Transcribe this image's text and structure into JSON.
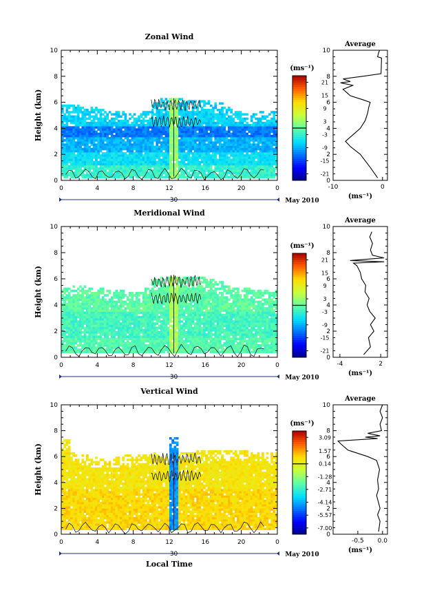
{
  "chart_data": [
    {
      "type": "heatmap",
      "title": "Zonal Wind",
      "ylabel": "Height (km)",
      "xlim": [
        0,
        24
      ],
      "ylim": [
        0,
        10
      ],
      "x_ticks": [
        "0",
        "4",
        "8",
        "12",
        "16",
        "20",
        "0"
      ],
      "y_ticks": [
        "0",
        "2",
        "4",
        "6",
        "8",
        "10"
      ],
      "date_ticks": [
        "30"
      ],
      "date_label": "May 2010",
      "unit_label": "(ms⁻¹)",
      "colorbar_ticks": [
        "21",
        "15",
        "9",
        "3",
        "-3",
        "-9",
        "-15",
        "-21"
      ],
      "colorbar_range": [
        -24,
        24
      ],
      "colorbar_zero_line": 0,
      "field": {
        "base_height_km": 0.2,
        "top_height_km": [
          5.8,
          5.8,
          5.6,
          5.6,
          5.5,
          5.4,
          5.3,
          5.2,
          5.2,
          5.4,
          6.0,
          6.3,
          6.4,
          6.3,
          6.2,
          6.2,
          6.1,
          6.0,
          5.6,
          5.3,
          5.2,
          5.2,
          5.3,
          5.4,
          5.3
        ],
        "bands": [
          {
            "from_km": 0.2,
            "to_km": 1.2,
            "value": -3
          },
          {
            "from_km": 1.2,
            "to_km": 2.2,
            "value": -6
          },
          {
            "from_km": 2.2,
            "to_km": 3.3,
            "value": -9
          },
          {
            "from_km": 3.3,
            "to_km": 4.2,
            "value": -12
          },
          {
            "from_km": 4.2,
            "to_km": 6.4,
            "value": -7
          }
        ],
        "column": {
          "x": 12.5,
          "width": 0.5,
          "value": 3
        }
      },
      "profile": {
        "title": "Average",
        "xlabel": "(ms⁻¹)",
        "xlim": [
          -10,
          1
        ],
        "x_ticks": [
          "-10",
          "0"
        ],
        "y_ticks": [
          "0",
          "2",
          "4",
          "6",
          "8",
          "10"
        ],
        "points": [
          [
            -1.0,
            0.2
          ],
          [
            -2.5,
            1.0
          ],
          [
            -4.5,
            2.0
          ],
          [
            -6.5,
            2.6
          ],
          [
            -7.5,
            3.0
          ],
          [
            -6.0,
            3.5
          ],
          [
            -4.5,
            4.0
          ],
          [
            -3.5,
            4.6
          ],
          [
            -3.0,
            5.2
          ],
          [
            -2.8,
            5.6
          ],
          [
            -2.5,
            6.0
          ],
          [
            -4.0,
            6.2
          ],
          [
            -6.5,
            6.5
          ],
          [
            -8.0,
            7.0
          ],
          [
            -6.0,
            7.3
          ],
          [
            -8.5,
            7.5
          ],
          [
            -6.5,
            7.6
          ],
          [
            -8.0,
            7.8
          ],
          [
            -4.0,
            8.0
          ],
          [
            -0.3,
            8.2
          ],
          [
            -0.2,
            9.4
          ],
          [
            -1.0,
            9.5
          ],
          [
            -0.8,
            9.8
          ],
          [
            -0.6,
            10.0
          ]
        ]
      }
    },
    {
      "type": "heatmap",
      "title": "Meridional Wind",
      "ylabel": "Height (km)",
      "xlim": [
        0,
        24
      ],
      "ylim": [
        0,
        10
      ],
      "x_ticks": [
        "0",
        "4",
        "8",
        "12",
        "16",
        "20",
        "0"
      ],
      "y_ticks": [
        "0",
        "2",
        "4",
        "6",
        "8",
        "10"
      ],
      "date_ticks": [
        "30"
      ],
      "date_label": "May 2010",
      "unit_label": "(ms⁻¹)",
      "colorbar_ticks": [
        "21",
        "15",
        "9",
        "3",
        "-3",
        "-9",
        "-15",
        "-21"
      ],
      "colorbar_range": [
        -24,
        24
      ],
      "colorbar_zero_line": 0,
      "field": {
        "base_height_km": 0.3,
        "top_height_km": [
          5.4,
          5.5,
          5.5,
          5.4,
          5.3,
          5.2,
          5.1,
          5.0,
          5.0,
          5.4,
          6.0,
          6.2,
          6.3,
          6.2,
          6.2,
          6.1,
          6.0,
          5.8,
          5.5,
          5.4,
          5.3,
          5.2,
          5.2,
          5.2,
          5.2
        ],
        "bands": [
          {
            "from_km": 0.3,
            "to_km": 1.5,
            "value": -1
          },
          {
            "from_km": 1.5,
            "to_km": 3.5,
            "value": -2
          },
          {
            "from_km": 3.5,
            "to_km": 6.3,
            "value": -0.5
          }
        ],
        "column": {
          "x": 12.5,
          "width": 0.5,
          "value": 4
        }
      },
      "profile": {
        "title": "Average",
        "xlabel": "(ms⁻¹)",
        "xlim": [
          -5,
          3
        ],
        "x_ticks": [
          "-4",
          "2"
        ],
        "y_ticks": [
          "0",
          "2",
          "4",
          "6",
          "8",
          "10"
        ],
        "points": [
          [
            -0.5,
            0.2
          ],
          [
            0.5,
            0.8
          ],
          [
            0.2,
            1.5
          ],
          [
            1.0,
            2.0
          ],
          [
            0.5,
            2.5
          ],
          [
            1.2,
            3.0
          ],
          [
            0.4,
            3.5
          ],
          [
            0.0,
            4.0
          ],
          [
            0.3,
            4.5
          ],
          [
            -0.3,
            5.0
          ],
          [
            -0.2,
            5.5
          ],
          [
            -0.8,
            6.0
          ],
          [
            -1.0,
            6.5
          ],
          [
            -1.5,
            7.0
          ],
          [
            -2.0,
            7.2
          ],
          [
            2.5,
            7.3
          ],
          [
            -2.5,
            7.4
          ],
          [
            2.5,
            7.6
          ],
          [
            0.8,
            7.8
          ],
          [
            0.5,
            8.2
          ],
          [
            0.8,
            8.7
          ],
          [
            0.4,
            9.2
          ],
          [
            0.7,
            9.6
          ]
        ]
      }
    },
    {
      "type": "heatmap",
      "title": "Vertical Wind",
      "ylabel": "Height (km)",
      "xlabel": "Local Time",
      "xlim": [
        0,
        24
      ],
      "ylim": [
        0,
        10
      ],
      "x_ticks": [
        "0",
        "4",
        "8",
        "12",
        "16",
        "20",
        "0"
      ],
      "y_ticks": [
        "0",
        "2",
        "4",
        "6",
        "8",
        "10"
      ],
      "date_ticks": [
        "30"
      ],
      "date_label": "May 2010",
      "unit_label": "(ms⁻¹)",
      "colorbar_ticks": [
        "3.09",
        "1.57",
        "0.14",
        "-1.28",
        "-2.71",
        "-4.14",
        "-5.57",
        "-7.00"
      ],
      "colorbar_range": [
        -7.7,
        3.8
      ],
      "colorbar_zero_line": 0.14,
      "field": {
        "base_height_km": 0.3,
        "top_height_km": [
          7.3,
          6.3,
          6.2,
          6.0,
          5.9,
          5.9,
          6.0,
          6.1,
          6.2,
          6.2,
          6.3,
          6.3,
          7.5,
          6.4,
          6.4,
          6.5,
          6.5,
          6.5,
          6.5,
          6.5,
          6.5,
          6.4,
          6.4,
          6.3,
          6.3
        ],
        "bands": [
          {
            "from_km": 0.3,
            "to_km": 3.5,
            "value": 0.9
          },
          {
            "from_km": 3.5,
            "to_km": 7.5,
            "value": 0.6
          }
        ],
        "column": {
          "x": 12.5,
          "width": 0.4,
          "value": -4.5
        }
      },
      "profile": {
        "title": "Average",
        "xlabel": "(ms⁻¹)",
        "xlim": [
          -1.0,
          0.1
        ],
        "x_ticks": [
          "-0.5",
          "0.0"
        ],
        "y_ticks": [
          "0",
          "2",
          "4",
          "6",
          "8",
          "10"
        ],
        "points": [
          [
            -0.08,
            0.2
          ],
          [
            -0.05,
            1.0
          ],
          [
            -0.1,
            1.5
          ],
          [
            -0.05,
            2.0
          ],
          [
            -0.12,
            3.0
          ],
          [
            -0.08,
            3.5
          ],
          [
            -0.1,
            4.2
          ],
          [
            -0.06,
            5.0
          ],
          [
            -0.12,
            5.7
          ],
          [
            -0.3,
            6.0
          ],
          [
            -0.7,
            6.5
          ],
          [
            -0.85,
            7.0
          ],
          [
            -0.9,
            7.2
          ],
          [
            -0.1,
            7.4
          ],
          [
            -0.35,
            7.5
          ],
          [
            -0.05,
            7.6
          ],
          [
            -0.3,
            7.8
          ],
          [
            -0.02,
            8.0
          ],
          [
            -0.05,
            8.5
          ],
          [
            0.0,
            9.0
          ],
          [
            -0.05,
            9.5
          ],
          [
            0.0,
            10.0
          ]
        ]
      }
    }
  ]
}
